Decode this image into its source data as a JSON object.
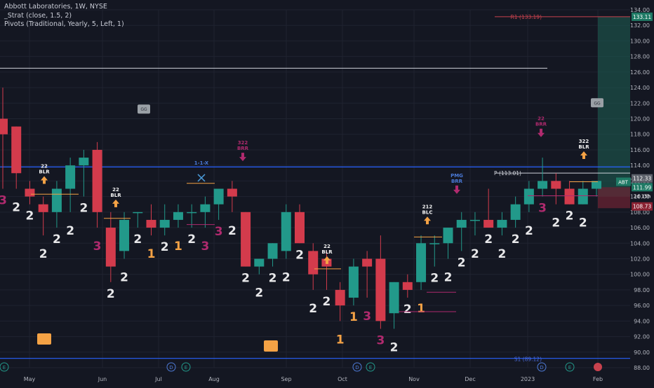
{
  "header": {
    "title": "Abbott Laboratories, 1W, NYSE",
    "indicator1": "_Strat (close, 1.5, 2)",
    "indicator2": "Pivots (Traditional, Yearly, 5, Left, 1)"
  },
  "colors": {
    "background": "#141722",
    "bull": "#22998a",
    "bear": "#d33b4c",
    "accent_orange": "#f4a245",
    "magenta": "#b02a6e",
    "grid": "#1f2330",
    "pivot_blue": "#2962ff"
  },
  "y_axis": {
    "ticks": [
      "134.00",
      "132.00",
      "130.00",
      "128.00",
      "126.00",
      "124.00",
      "122.00",
      "120.00",
      "118.00",
      "116.00",
      "114.00",
      "112.00",
      "110.00",
      "108.00",
      "106.00",
      "104.00",
      "102.00",
      "100.00",
      "98.00",
      "96.00",
      "94.00",
      "92.00",
      "90.00",
      "88.00"
    ],
    "price_tags": {
      "top": "133.11",
      "pivot": "112.33",
      "last": "111.99",
      "symbol": "ABT",
      "countdown": "2d 15h",
      "bottom": "108.73"
    }
  },
  "x_axis": {
    "labels": [
      "May",
      "Jun",
      "Jul",
      "Aug",
      "Sep",
      "Oct",
      "Nov",
      "Dec",
      "2023",
      "Feb"
    ]
  },
  "pivot_labels": {
    "r1": "R1 (133.19)",
    "p": "P (113.01)",
    "s1": "S1 (89.12)"
  },
  "annotations": {
    "labels": [
      "22 BLR",
      "22 BLR",
      "1-1-X",
      "322 BRR",
      "22 BLR",
      "212 BLC",
      "PMG BRR",
      "22 BRR",
      "322 BLR"
    ],
    "dividend_marker": "D",
    "earnings_marker": "E",
    "gs_labels": [
      "GG",
      "GG"
    ]
  },
  "strat_numbers": [
    "3",
    "2",
    "2",
    "2",
    "2",
    "2",
    "2",
    "3",
    "2",
    "2",
    "2",
    "1",
    "2",
    "1",
    "2",
    "3",
    "3",
    "2",
    "2",
    "2",
    "2",
    "2",
    "2",
    "2",
    "2",
    "1",
    "1",
    "3",
    "3",
    "2",
    "2",
    "1",
    "2",
    "2",
    "2",
    "2",
    "2",
    "2",
    "2",
    "2",
    "3",
    "2",
    "2",
    "2"
  ],
  "chart_data": {
    "type": "candlestick",
    "symbol": "ABT",
    "ylim": [
      88,
      134
    ],
    "candles": [
      {
        "o": 120,
        "h": 124,
        "l": 111,
        "c": 118
      },
      {
        "o": 119,
        "h": 119,
        "l": 111,
        "c": 113
      },
      {
        "o": 111,
        "h": 112,
        "l": 109,
        "c": 110
      },
      {
        "o": 109,
        "h": 110,
        "l": 105,
        "c": 108
      },
      {
        "o": 108,
        "h": 112,
        "l": 106,
        "c": 111
      },
      {
        "o": 111,
        "h": 115,
        "l": 108,
        "c": 114
      },
      {
        "o": 114,
        "h": 116,
        "l": 110,
        "c": 115
      },
      {
        "o": 116,
        "h": 117,
        "l": 106,
        "c": 108
      },
      {
        "o": 106,
        "h": 108,
        "l": 99,
        "c": 101
      },
      {
        "o": 103,
        "h": 108,
        "l": 102,
        "c": 107
      },
      {
        "o": 108,
        "h": 108,
        "l": 106,
        "c": 108
      },
      {
        "o": 107,
        "h": 109,
        "l": 105,
        "c": 106
      },
      {
        "o": 106,
        "h": 109,
        "l": 105,
        "c": 107
      },
      {
        "o": 107,
        "h": 109,
        "l": 106,
        "c": 108
      },
      {
        "o": 108,
        "h": 109,
        "l": 106,
        "c": 108
      },
      {
        "o": 108,
        "h": 110,
        "l": 106,
        "c": 109
      },
      {
        "o": 109,
        "h": 111,
        "l": 107,
        "c": 111
      },
      {
        "o": 111,
        "h": 112,
        "l": 108,
        "c": 110
      },
      {
        "o": 108,
        "h": 108,
        "l": 101,
        "c": 101
      },
      {
        "o": 101,
        "h": 102,
        "l": 100,
        "c": 102
      },
      {
        "o": 102,
        "h": 104,
        "l": 101,
        "c": 104
      },
      {
        "o": 103,
        "h": 109,
        "l": 102,
        "c": 108
      },
      {
        "o": 108,
        "h": 109,
        "l": 104,
        "c": 104
      },
      {
        "o": 103,
        "h": 104,
        "l": 98,
        "c": 100
      },
      {
        "o": 102,
        "h": 103,
        "l": 98,
        "c": 101
      },
      {
        "o": 98,
        "h": 99,
        "l": 94,
        "c": 96
      },
      {
        "o": 97,
        "h": 102,
        "l": 96,
        "c": 101
      },
      {
        "o": 102,
        "h": 103,
        "l": 97,
        "c": 101
      },
      {
        "o": 102,
        "h": 105,
        "l": 93,
        "c": 94
      },
      {
        "o": 95,
        "h": 99,
        "l": 93,
        "c": 99
      },
      {
        "o": 99,
        "h": 100,
        "l": 97,
        "c": 98
      },
      {
        "o": 99,
        "h": 105,
        "l": 98,
        "c": 104
      },
      {
        "o": 104,
        "h": 105,
        "l": 101,
        "c": 104
      },
      {
        "o": 104,
        "h": 106,
        "l": 102,
        "c": 106
      },
      {
        "o": 106,
        "h": 108,
        "l": 103,
        "c": 107
      },
      {
        "o": 107,
        "h": 108,
        "l": 105,
        "c": 107
      },
      {
        "o": 107,
        "h": 111,
        "l": 106,
        "c": 106
      },
      {
        "o": 106,
        "h": 108,
        "l": 105,
        "c": 107
      },
      {
        "o": 107,
        "h": 110,
        "l": 106,
        "c": 109
      },
      {
        "o": 109,
        "h": 112,
        "l": 108,
        "c": 111
      },
      {
        "o": 111,
        "h": 115,
        "l": 110,
        "c": 112
      },
      {
        "o": 112,
        "h": 113,
        "l": 109,
        "c": 111
      },
      {
        "o": 111,
        "h": 112,
        "l": 109,
        "c": 109
      },
      {
        "o": 109,
        "h": 112,
        "l": 109,
        "c": 111
      },
      {
        "o": 111,
        "h": 112,
        "l": 110,
        "c": 112
      }
    ]
  }
}
